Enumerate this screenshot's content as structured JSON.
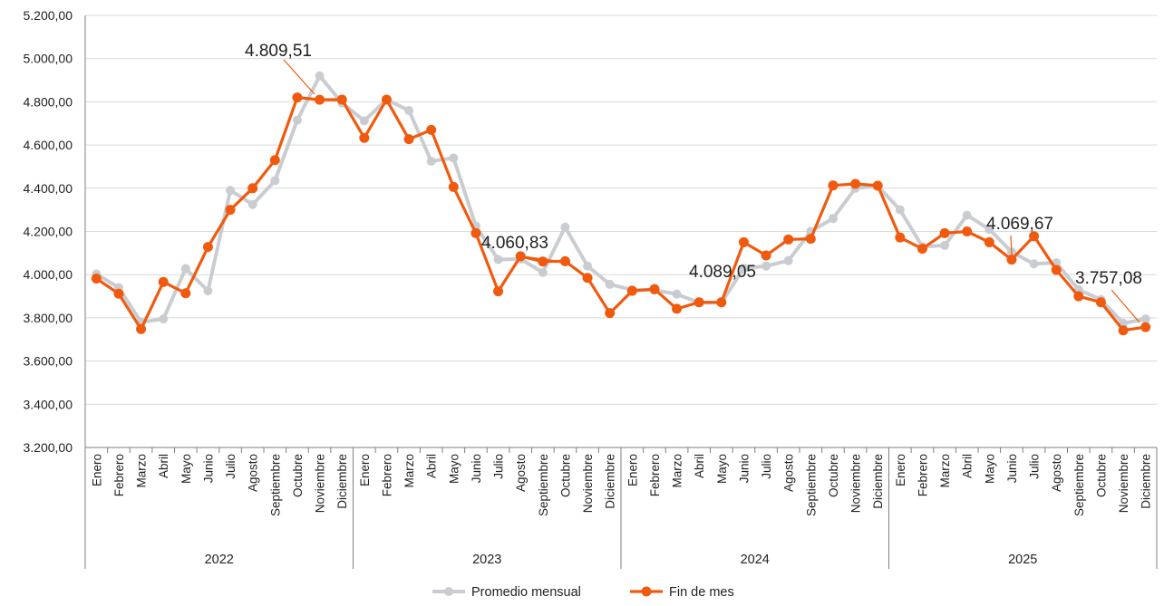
{
  "chart_data": {
    "type": "line",
    "title": "",
    "xlabel": "",
    "ylabel": "",
    "ylim": [
      3200,
      5200
    ],
    "yticks": [
      3200,
      3400,
      3600,
      3800,
      4000,
      4200,
      4400,
      4600,
      4800,
      5000,
      5200
    ],
    "ytick_labels": [
      "3.200,00",
      "3.400,00",
      "3.600,00",
      "3.800,00",
      "4.000,00",
      "4.200,00",
      "4.400,00",
      "4.600,00",
      "4.800,00",
      "5.000,00",
      "5.200,00"
    ],
    "grid": "horizontal",
    "legend_position": "bottom",
    "groups": [
      {
        "label": "2022",
        "months": [
          "Enero",
          "Febrero",
          "Marzo",
          "Abril",
          "Mayo",
          "Junio",
          "Julio",
          "Agosto",
          "Septiembre",
          "Octubre",
          "Noviembre",
          "Diciembre"
        ]
      },
      {
        "label": "2023",
        "months": [
          "Enero",
          "Febrero",
          "Marzo",
          "Abril",
          "Mayo",
          "Junio",
          "Julio",
          "Agosto",
          "Septiembre",
          "Octubre",
          "Noviembre",
          "Diciembre"
        ]
      },
      {
        "label": "2024",
        "months": [
          "Enero",
          "Febrero",
          "Marzo",
          "Abril",
          "Mayo",
          "Junio",
          "Julio",
          "Agosto",
          "Septiembre",
          "Octubre",
          "Noviembre",
          "Diciembre"
        ]
      },
      {
        "label": "2025",
        "months": [
          "Enero",
          "Febrero",
          "Marzo",
          "Abril",
          "Mayo",
          "Junio",
          "Julio",
          "Agosto",
          "Septiembre",
          "Octubre",
          "Noviembre",
          "Diciembre"
        ]
      }
    ],
    "series": [
      {
        "name": "Promedio mensual",
        "color": "#c9cdd1",
        "values": [
          4003,
          3940,
          3780,
          3795,
          4028,
          3925,
          4390,
          4325,
          4435,
          4715,
          4920,
          4795,
          4712,
          4810,
          4760,
          4525,
          4540,
          4225,
          4070,
          4072,
          4010,
          4220,
          4040,
          3955,
          3930,
          3928,
          3910,
          3870,
          3870,
          4030,
          4040,
          4065,
          4200,
          4260,
          4400,
          4410,
          4300,
          4130,
          4135,
          4275,
          4210,
          4105,
          4050,
          4055,
          3930,
          3885,
          3775,
          3795
        ]
      },
      {
        "name": "Fin de mes",
        "color": "#f05a0f",
        "values": [
          3982,
          3912,
          3748,
          3966,
          3914,
          4128,
          4300,
          4400,
          4530,
          4820,
          4809.51,
          4810,
          4633,
          4810,
          4627,
          4670,
          4406,
          4192,
          3923,
          4085,
          4060.83,
          4062,
          3985,
          3822,
          3925,
          3933,
          3842,
          3872,
          3872,
          4150,
          4089.05,
          4163,
          4166,
          4413,
          4420,
          4412,
          4172,
          4120,
          4192,
          4200,
          4150,
          4069.67,
          4178,
          4022,
          3900,
          3872,
          3742,
          3757.08
        ]
      }
    ],
    "annotations": [
      {
        "text": "4.809,51",
        "series": "Fin de mes",
        "index": 10
      },
      {
        "text": "4.060,83",
        "series": "Fin de mes",
        "index": 20
      },
      {
        "text": "4.089,05",
        "series": "Fin de mes",
        "index": 30
      },
      {
        "text": "4.069,67",
        "series": "Fin de mes",
        "index": 41
      },
      {
        "text": "3.757,08",
        "series": "Fin de mes",
        "index": 47
      }
    ]
  }
}
